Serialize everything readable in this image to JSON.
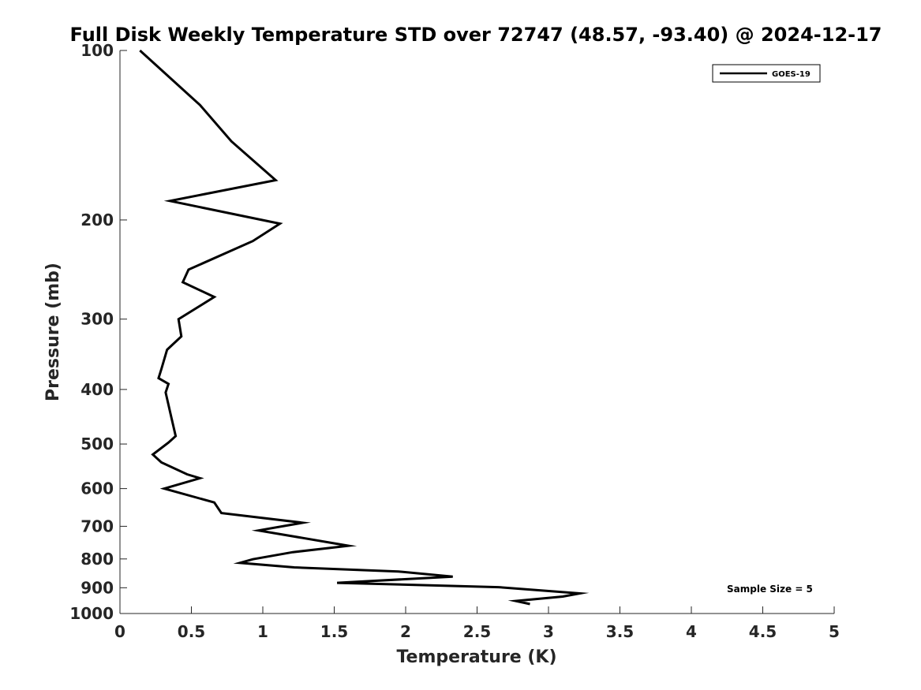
{
  "chart_data": {
    "type": "line",
    "title": "Full Disk Weekly Temperature STD over 72747 (48.57, -93.40) @ 2024-12-17",
    "xlabel": "Temperature (K)",
    "ylabel": "Pressure (mb)",
    "xlim": [
      0,
      5
    ],
    "ylim": [
      100,
      1000
    ],
    "yscale": "log",
    "y_reversed": true,
    "grid": false,
    "xticks": [
      0,
      0.5,
      1,
      1.5,
      2,
      2.5,
      3,
      3.5,
      4,
      4.5,
      5
    ],
    "xtick_labels": [
      "0",
      "0.5",
      "1",
      "1.5",
      "2",
      "2.5",
      "3",
      "3.5",
      "4",
      "4.5",
      "5"
    ],
    "yticks": [
      100,
      200,
      300,
      400,
      500,
      600,
      700,
      800,
      900,
      1000
    ],
    "ytick_labels": [
      "100",
      "200",
      "300",
      "400",
      "500",
      "600",
      "700",
      "800",
      "900",
      "1000"
    ],
    "legend": {
      "position": "top-right",
      "entries": [
        "GOES-19"
      ]
    },
    "annotations": [
      {
        "text": "Sample Size = 5",
        "position": "bottom-right"
      }
    ],
    "series": [
      {
        "name": "GOES-19",
        "color": "#000000",
        "x": [
          0.14,
          0.56,
          0.78,
          1.09,
          0.35,
          1.12,
          0.93,
          0.48,
          0.44,
          0.66,
          0.41,
          0.43,
          0.33,
          0.29,
          0.27,
          0.34,
          0.32,
          0.36,
          0.39,
          0.34,
          0.23,
          0.29,
          0.47,
          0.56,
          0.31,
          0.66,
          0.71,
          1.28,
          0.97,
          1.6,
          1.21,
          0.93,
          0.84,
          1.22,
          1.95,
          2.33,
          1.52,
          2.65,
          3.22,
          3.1,
          2.77,
          2.87
        ],
        "y": [
          100,
          125,
          145,
          170,
          185,
          203,
          218,
          245,
          258,
          274,
          300,
          322,
          340,
          368,
          382,
          391,
          405,
          449,
          484,
          497,
          522,
          539,
          566,
          575,
          600,
          635,
          663,
          690,
          712,
          758,
          778,
          801,
          813,
          828,
          842,
          860,
          882,
          898,
          921,
          933,
          950,
          962
        ]
      }
    ]
  }
}
